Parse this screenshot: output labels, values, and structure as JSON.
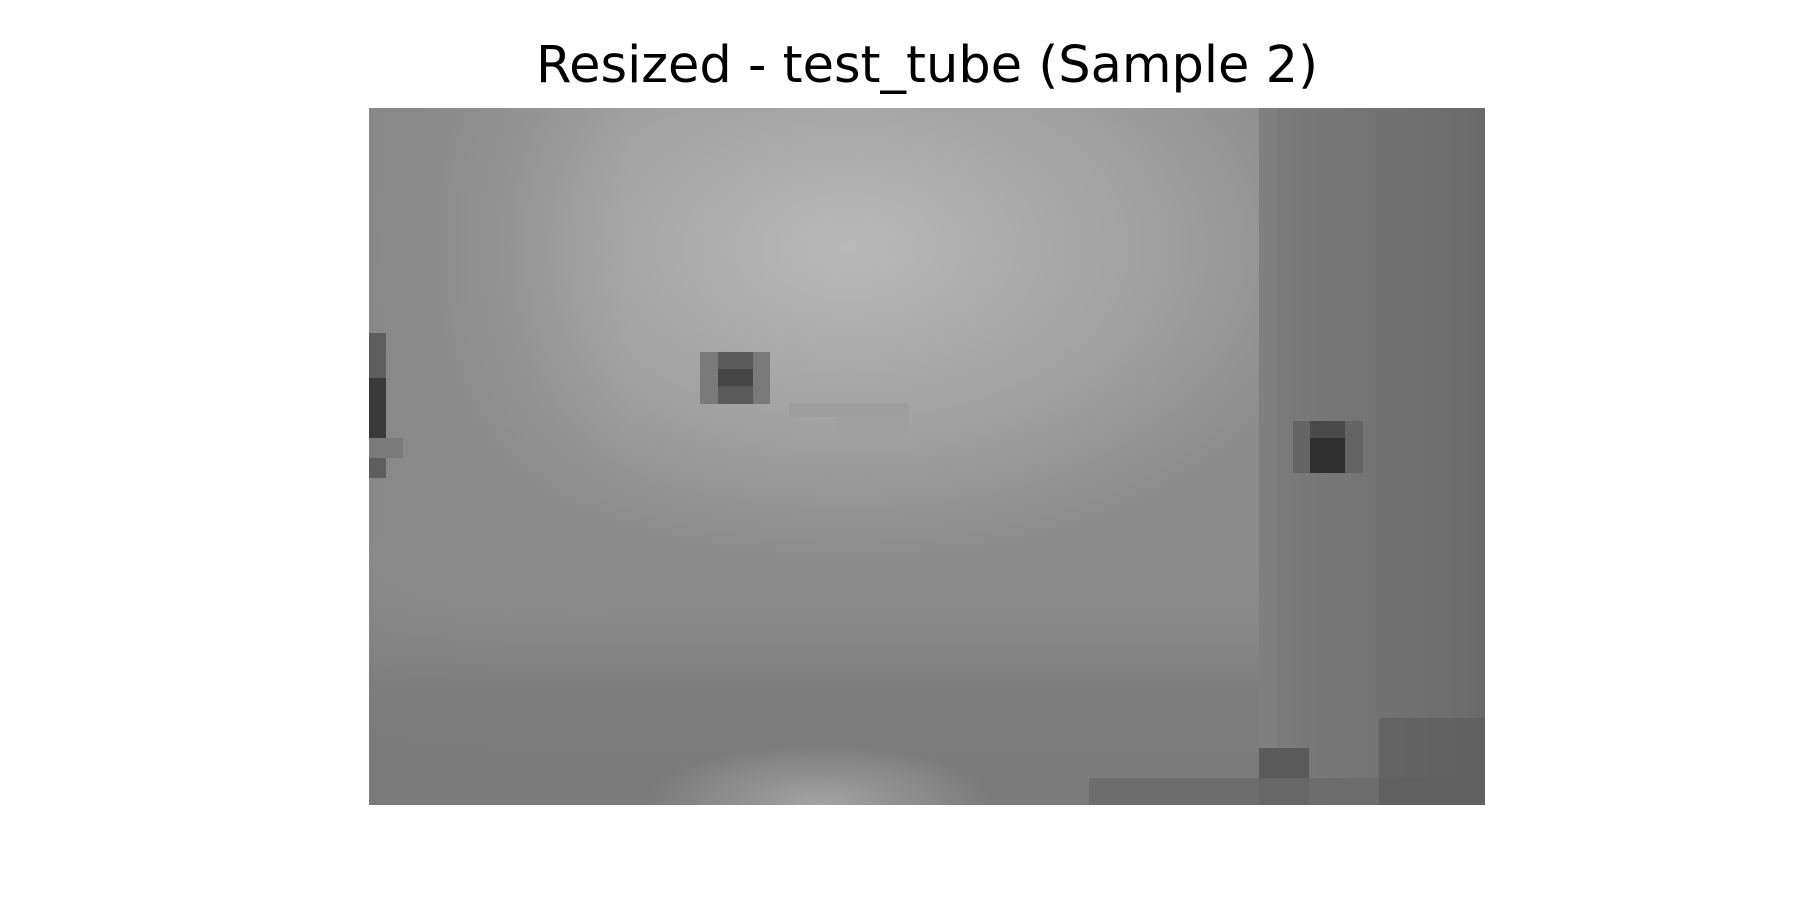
{
  "figure": {
    "title": "Resized - test_tube (Sample 2)"
  },
  "image": {
    "description_alt": "Pixelated grayscale resized image",
    "colormap": "gray",
    "palette": {
      "background_mid": "#8f8f8f",
      "highlight": "#b8b8b8",
      "right_strip": "#727272",
      "dark_spot": "#2e2e2e",
      "shadow": "#5a5a5a"
    }
  }
}
